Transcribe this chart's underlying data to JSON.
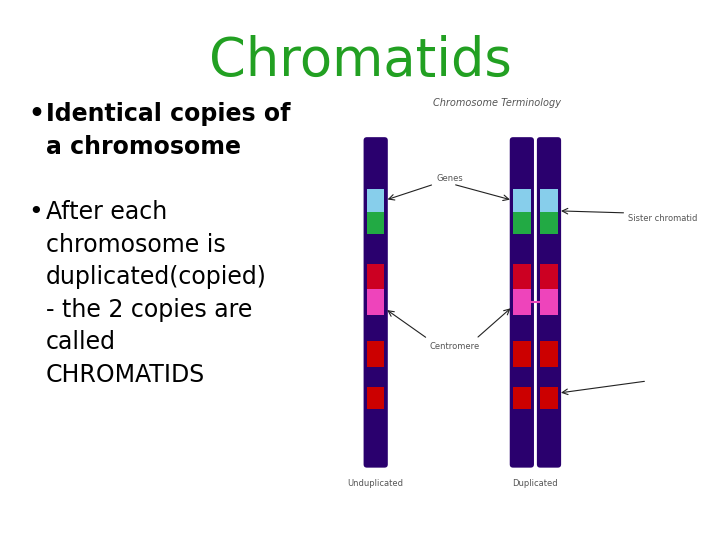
{
  "title": "Chromatids",
  "title_color": "#22a022",
  "title_fontsize": 38,
  "bg_color": "#ffffff",
  "bullet1_bold": "Identical copies of\na chromosome",
  "bullet2_line1": "After each",
  "bullet2_line2": "chromosome is",
  "bullet2_line3": "duplicated(copied)",
  "bullet2_line4": "- the 2 copies are",
  "bullet2_line5": "called",
  "bullet2_line6": "CHROMATIDS",
  "bullet_fontsize": 17,
  "text_color": "#000000",
  "chrom_main_color": "#2a006e",
  "band_cyan": "#87CEEB",
  "band_green": "#22aa44",
  "band_red1": "#cc0022",
  "band_pink": "#ee44bb",
  "band_red2": "#cc0000",
  "label_color": "#555555",
  "arrow_color": "#222222"
}
